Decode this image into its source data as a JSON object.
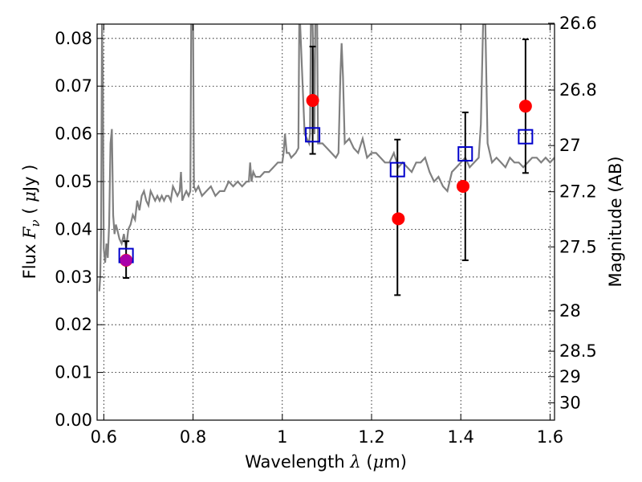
{
  "chart_data": {
    "type": "scatter",
    "xlabel": {
      "prefix": "Wavelength",
      "symbol": "λ",
      "unit_open": "(",
      "unit_mu": "μ",
      "unit_rest": "m)"
    },
    "ylabel": {
      "prefix": "Flux",
      "symbol": "F",
      "subscript": "ν",
      "open": "(",
      "mu": "μ",
      "rest": "Jy",
      "close": ")"
    },
    "y2label": "Magnitude (AB)",
    "xlim": [
      0.585,
      1.61
    ],
    "ylim": [
      0.0,
      0.083
    ],
    "grid": true,
    "x_ticks": [
      {
        "value": 0.6,
        "label": "0.6"
      },
      {
        "value": 0.8,
        "label": "0.8"
      },
      {
        "value": 1.0,
        "label": "1"
      },
      {
        "value": 1.2,
        "label": "1.2"
      },
      {
        "value": 1.4,
        "label": "1.4"
      },
      {
        "value": 1.6,
        "label": "1.6"
      }
    ],
    "y_ticks": [
      {
        "value": 0.0,
        "label": "0.00"
      },
      {
        "value": 0.01,
        "label": "0.01"
      },
      {
        "value": 0.02,
        "label": "0.02"
      },
      {
        "value": 0.03,
        "label": "0.03"
      },
      {
        "value": 0.04,
        "label": "0.04"
      },
      {
        "value": 0.05,
        "label": "0.05"
      },
      {
        "value": 0.06,
        "label": "0.06"
      },
      {
        "value": 0.07,
        "label": "0.07"
      },
      {
        "value": 0.08,
        "label": "0.08"
      }
    ],
    "y2_ticks": [
      {
        "mag": 26.6,
        "label": "26.6"
      },
      {
        "mag": 26.8,
        "label": "26.8"
      },
      {
        "mag": 27.0,
        "label": "27"
      },
      {
        "mag": 27.2,
        "label": "27.2"
      },
      {
        "mag": 27.5,
        "label": "27.5"
      },
      {
        "mag": 28.0,
        "label": "28"
      },
      {
        "mag": 28.5,
        "label": "28.5"
      },
      {
        "mag": 29.0,
        "label": "29"
      },
      {
        "mag": 30.0,
        "label": "30"
      }
    ],
    "series": [
      {
        "kind": "spectrum",
        "color": "#808080",
        "x": [
          0.59,
          0.592,
          0.594,
          0.596,
          0.598,
          0.6,
          0.603,
          0.606,
          0.609,
          0.612,
          0.615,
          0.618,
          0.621,
          0.624,
          0.627,
          0.63,
          0.635,
          0.64,
          0.645,
          0.65,
          0.655,
          0.66,
          0.665,
          0.67,
          0.675,
          0.68,
          0.685,
          0.69,
          0.695,
          0.7,
          0.705,
          0.71,
          0.715,
          0.72,
          0.725,
          0.73,
          0.735,
          0.74,
          0.745,
          0.75,
          0.755,
          0.76,
          0.765,
          0.77,
          0.773,
          0.776,
          0.78,
          0.785,
          0.79,
          0.794,
          0.796,
          0.798,
          0.8,
          0.802,
          0.806,
          0.812,
          0.82,
          0.83,
          0.84,
          0.85,
          0.86,
          0.87,
          0.88,
          0.89,
          0.9,
          0.91,
          0.92,
          0.925,
          0.928,
          0.931,
          0.935,
          0.94,
          0.95,
          0.96,
          0.97,
          0.98,
          0.99,
          1.0,
          1.003,
          1.006,
          1.01,
          1.015,
          1.02,
          1.03,
          1.036,
          1.038,
          1.04,
          1.05,
          1.06,
          1.062,
          1.064,
          1.068,
          1.072,
          1.074,
          1.076,
          1.078,
          1.08,
          1.09,
          1.1,
          1.11,
          1.12,
          1.126,
          1.13,
          1.133,
          1.136,
          1.14,
          1.15,
          1.16,
          1.17,
          1.18,
          1.19,
          1.2,
          1.21,
          1.22,
          1.23,
          1.24,
          1.25,
          1.26,
          1.27,
          1.28,
          1.29,
          1.3,
          1.31,
          1.32,
          1.33,
          1.34,
          1.35,
          1.36,
          1.37,
          1.38,
          1.39,
          1.4,
          1.41,
          1.42,
          1.43,
          1.44,
          1.445,
          1.45,
          1.455,
          1.46,
          1.47,
          1.48,
          1.49,
          1.5,
          1.51,
          1.52,
          1.53,
          1.54,
          1.55,
          1.56,
          1.57,
          1.58,
          1.59,
          1.6,
          1.61
        ],
        "y": [
          0.027,
          0.03,
          0.04,
          0.083,
          0.07,
          0.036,
          0.033,
          0.037,
          0.034,
          0.041,
          0.058,
          0.061,
          0.043,
          0.039,
          0.041,
          0.04,
          0.038,
          0.037,
          0.039,
          0.036,
          0.04,
          0.041,
          0.043,
          0.042,
          0.046,
          0.044,
          0.047,
          0.048,
          0.046,
          0.045,
          0.048,
          0.047,
          0.046,
          0.047,
          0.046,
          0.047,
          0.046,
          0.047,
          0.047,
          0.046,
          0.049,
          0.048,
          0.047,
          0.048,
          0.052,
          0.046,
          0.047,
          0.048,
          0.047,
          0.048,
          0.083,
          0.083,
          0.083,
          0.049,
          0.048,
          0.049,
          0.047,
          0.048,
          0.049,
          0.047,
          0.048,
          0.048,
          0.05,
          0.049,
          0.05,
          0.049,
          0.05,
          0.05,
          0.054,
          0.05,
          0.052,
          0.051,
          0.051,
          0.052,
          0.052,
          0.053,
          0.054,
          0.054,
          0.056,
          0.06,
          0.056,
          0.056,
          0.055,
          0.056,
          0.057,
          0.083,
          0.083,
          0.06,
          0.058,
          0.06,
          0.083,
          0.083,
          0.06,
          0.083,
          0.083,
          0.083,
          0.058,
          0.058,
          0.057,
          0.056,
          0.055,
          0.056,
          0.072,
          0.079,
          0.072,
          0.058,
          0.059,
          0.057,
          0.056,
          0.059,
          0.055,
          0.056,
          0.056,
          0.055,
          0.054,
          0.054,
          0.056,
          0.053,
          0.054,
          0.053,
          0.052,
          0.054,
          0.054,
          0.055,
          0.052,
          0.05,
          0.051,
          0.049,
          0.048,
          0.052,
          0.053,
          0.054,
          0.055,
          0.053,
          0.054,
          0.055,
          0.062,
          0.083,
          0.083,
          0.058,
          0.054,
          0.055,
          0.054,
          0.053,
          0.055,
          0.054,
          0.054,
          0.053,
          0.054,
          0.055,
          0.055,
          0.054,
          0.055,
          0.054,
          0.055
        ]
      },
      {
        "kind": "observed",
        "marker": "circle",
        "color": "#ff0000",
        "x": [
          0.65,
          1.068,
          1.26,
          1.405,
          1.545
        ],
        "y": [
          0.0335,
          0.067,
          0.0422,
          0.049,
          0.0658
        ]
      },
      {
        "kind": "model",
        "marker": "square",
        "color": "#0000cc",
        "x": [
          0.65,
          1.068,
          1.258,
          1.41,
          1.545
        ],
        "y": [
          0.0345,
          0.0598,
          0.0525,
          0.0558,
          0.0594
        ],
        "yerr_low": [
          0.0298,
          0.0558,
          0.0262,
          0.0335,
          0.0518
        ],
        "yerr_high": [
          0.0375,
          0.0783,
          0.0588,
          0.0645,
          0.0798
        ]
      },
      {
        "kind": "highlight",
        "marker": "circle",
        "color": "#aa00aa",
        "x": [
          0.65
        ],
        "y": [
          0.0335
        ]
      }
    ]
  }
}
